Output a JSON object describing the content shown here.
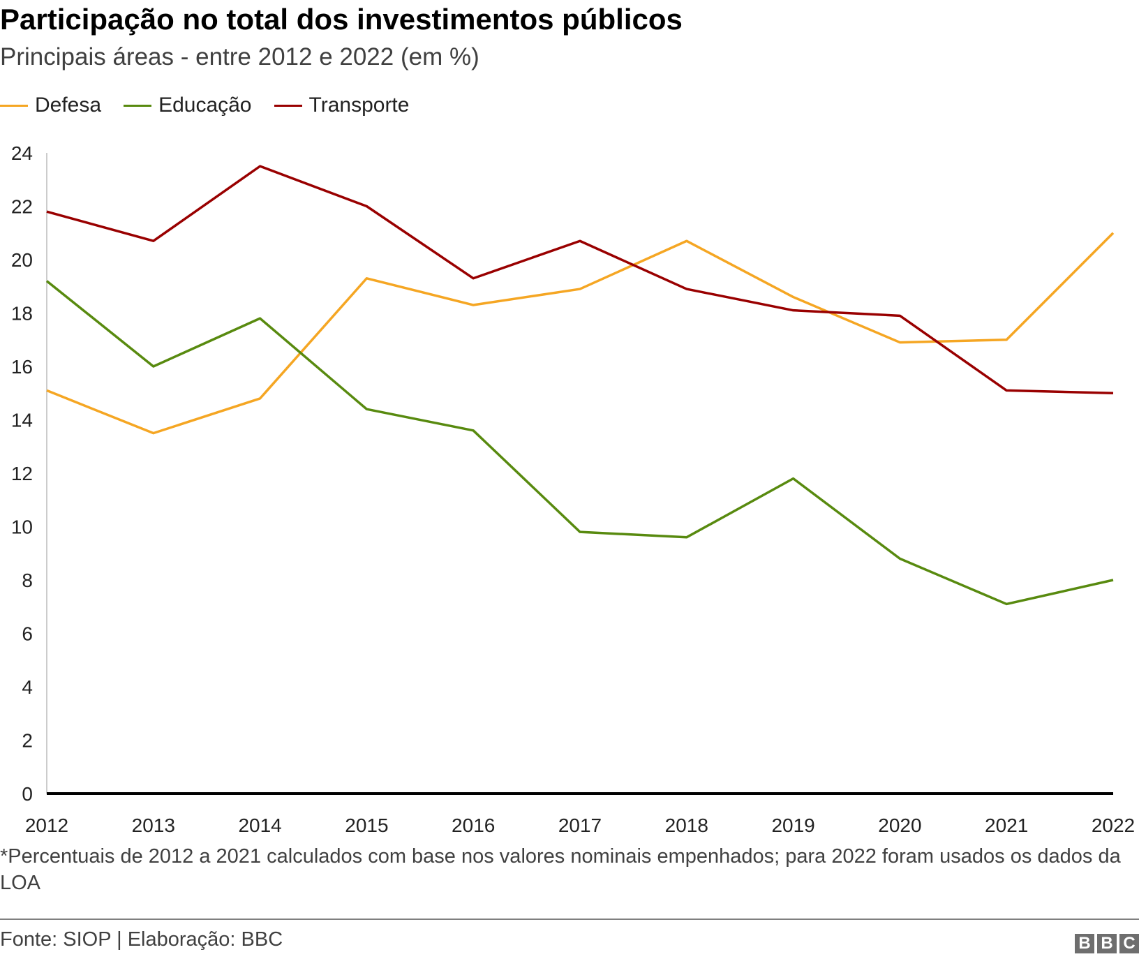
{
  "chart_data": {
    "type": "line",
    "title": "Participação no total dos investimentos públicos",
    "subtitle": "Principais áreas - entre 2012 e 2022 (em %)",
    "xlabel": "",
    "ylabel": "",
    "categories": [
      "2012",
      "2013",
      "2014",
      "2015",
      "2016",
      "2017",
      "2018",
      "2019",
      "2020",
      "2021",
      "2022"
    ],
    "ylim": [
      0,
      24
    ],
    "yticks": [
      0,
      2,
      4,
      6,
      8,
      10,
      12,
      14,
      16,
      18,
      20,
      22,
      24
    ],
    "grid": false,
    "legend_position": "top-left",
    "series": [
      {
        "name": "Defesa",
        "color": "#f5a623",
        "values": [
          15.1,
          13.5,
          14.8,
          19.3,
          18.3,
          18.9,
          20.7,
          18.6,
          16.9,
          17.0,
          21.0
        ]
      },
      {
        "name": "Educação",
        "color": "#588a0f",
        "values": [
          19.2,
          16.0,
          17.8,
          14.4,
          13.6,
          9.8,
          9.6,
          11.8,
          8.8,
          7.1,
          8.0
        ]
      },
      {
        "name": "Transporte",
        "color": "#990000",
        "values": [
          21.8,
          20.7,
          23.5,
          22.0,
          19.3,
          20.7,
          18.9,
          18.1,
          17.9,
          15.1,
          15.0
        ]
      }
    ]
  },
  "footnote": "*Percentuais de 2012 a 2021 calculados com base nos valores nominais empenhados; para 2022 foram usados os dados da LOA",
  "source": "Fonte: SIOP | Elaboração: BBC",
  "logo": "BBC"
}
